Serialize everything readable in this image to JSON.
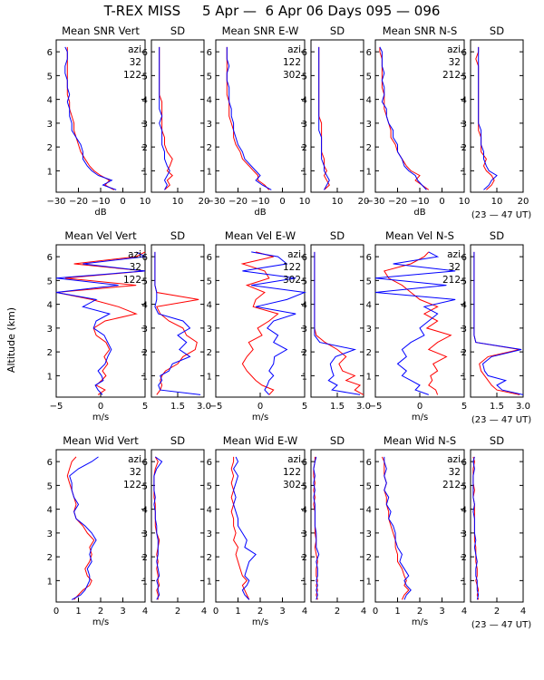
{
  "title": "T-REX MISS     5 Apr —  6 Apr 06 Days 095 — 096",
  "ylabel": "Altitude (km)",
  "ut_note": "(23 — 47 UT)",
  "colors": {
    "red": "#ff0000",
    "blue": "#0000ff",
    "black": "#000000"
  },
  "chart_data": {
    "type": "line",
    "y_axis": {
      "label": "Altitude (km)",
      "range": [
        0.1,
        6.5
      ],
      "ticks": [
        1,
        2,
        3,
        4,
        5,
        6
      ]
    },
    "rows": [
      {
        "name": "snr",
        "mean_xlabel": "dB",
        "mean_range": [
          -30,
          10
        ],
        "mean_ticks": [
          -30,
          -20,
          -10,
          0,
          10
        ],
        "mean_ticklabels": [
          "−30",
          "−20",
          "−10",
          "0",
          "10"
        ],
        "sd_range": [
          0,
          20
        ],
        "sd_ticks": [
          10,
          20
        ],
        "sd_ticklabels": [
          "10",
          "20"
        ],
        "show_ut": true,
        "panels": [
          {
            "title": "Mean SNR Vert",
            "legend": [
              "azi",
              "32",
              "122"
            ],
            "red_key": "snr_v",
            "blue_key": "snr_v_b"
          },
          {
            "title": "Mean SNR E-W",
            "legend": [
              "azi",
              "122",
              "302"
            ],
            "red_key": "snr_ew",
            "blue_key": "snr_ew_b"
          },
          {
            "title": "Mean SNR N-S",
            "legend": [
              "azi",
              "32",
              "212"
            ],
            "red_key": "snr_ns",
            "blue_key": "snr_ns_b"
          }
        ],
        "sd_title": "SD"
      },
      {
        "name": "vel",
        "mean_xlabel": "m/s",
        "mean_range": [
          -5,
          5
        ],
        "mean_ticks": [
          -5,
          0,
          5
        ],
        "mean_ticklabels": [
          "−5",
          "0",
          "5"
        ],
        "sd_range": [
          0,
          3.0
        ],
        "sd_ticks": [
          1.5,
          3.0
        ],
        "sd_ticklabels": [
          "1.5",
          "3.0"
        ],
        "show_ut": true,
        "panels": [
          {
            "title": "Mean Vel Vert",
            "legend": [
              "azi",
              "32",
              "122"
            ]
          },
          {
            "title": "Mean Vel E-W",
            "legend": [
              "azi",
              "122",
              "302"
            ]
          },
          {
            "title": "Mean Vel N-S",
            "legend": [
              "azi",
              "32",
              "212"
            ]
          }
        ],
        "sd_title": "SD"
      },
      {
        "name": "wid",
        "mean_xlabel": "m/s",
        "mean_range": [
          0,
          4
        ],
        "mean_ticks": [
          0,
          1,
          2,
          3,
          4
        ],
        "mean_ticklabels": [
          "0",
          "1",
          "2",
          "3",
          "4"
        ],
        "sd_range": [
          0,
          4
        ],
        "sd_ticks": [
          2,
          4
        ],
        "sd_ticklabels": [
          "2",
          "4"
        ],
        "show_ut": true,
        "panels": [
          {
            "title": "Mean Wid Vert",
            "legend": [
              "azi",
              "32",
              "122"
            ]
          },
          {
            "title": "Mean Wid E-W",
            "legend": [
              "azi",
              "122",
              "302"
            ]
          },
          {
            "title": "Mean Wid N-S",
            "legend": [
              "azi",
              "32",
              "212"
            ]
          }
        ],
        "sd_title": "SD"
      }
    ],
    "profiles": {
      "alt": [
        0.2,
        0.4,
        0.6,
        0.8,
        1.0,
        1.2,
        1.5,
        1.8,
        2.1,
        2.4,
        2.7,
        3.0,
        3.3,
        3.6,
        3.9,
        4.2,
        4.5,
        4.8,
        5.1,
        5.4,
        5.7,
        6.0,
        6.2
      ],
      "snr_mean": [
        {
          "red": [
            -4,
            -8,
            -6,
            -10,
            -13,
            -15,
            -17,
            -19,
            -20,
            -21,
            -22,
            -22,
            -23,
            -24,
            -24,
            -25,
            -25,
            -25,
            -25,
            -25,
            -25,
            -25,
            -25
          ],
          "blue": [
            -3,
            -9,
            -5,
            -11,
            -14,
            -16,
            -18,
            -18,
            -19,
            -21,
            -23,
            -23,
            -24,
            -24,
            -25,
            -24,
            -25,
            -25,
            -26,
            -26,
            -25,
            -25,
            -26
          ]
        },
        {
          "red": [
            -6,
            -8,
            -11,
            -11,
            -13,
            -15,
            -18,
            -19,
            -21,
            -22,
            -22,
            -23,
            -24,
            -24,
            -24,
            -25,
            -25,
            -25,
            -25,
            -25,
            -25,
            -25,
            -25
          ],
          "blue": [
            -5,
            -9,
            -12,
            -10,
            -12,
            -14,
            -17,
            -18,
            -20,
            -21,
            -22,
            -22,
            -23,
            -23,
            -24,
            -24,
            -24,
            -25,
            -25,
            -24,
            -25,
            -25,
            -25
          ]
        },
        {
          "red": [
            -6,
            -9,
            -12,
            -10,
            -14,
            -16,
            -18,
            -20,
            -21,
            -23,
            -23,
            -24,
            -25,
            -26,
            -26,
            -26,
            -27,
            -27,
            -27,
            -27,
            -27,
            -28,
            -28
          ],
          "blue": [
            -7,
            -9,
            -11,
            -12,
            -15,
            -17,
            -18,
            -20,
            -20,
            -22,
            -22,
            -24,
            -25,
            -25,
            -27,
            -26,
            -26,
            -27,
            -26,
            -27,
            -27,
            -27,
            -28
          ]
        }
      ],
      "snr_sd": [
        {
          "red": [
            5,
            7,
            6,
            8,
            6,
            7,
            8,
            6,
            5,
            5,
            4,
            4,
            4,
            4,
            4,
            3,
            3,
            3,
            3,
            3,
            3,
            3,
            3
          ],
          "blue": [
            5,
            6,
            5,
            6,
            7,
            6,
            5,
            5,
            4,
            4,
            4,
            3,
            4,
            3,
            3,
            3,
            3,
            3,
            3,
            3,
            3,
            3,
            3
          ]
        },
        {
          "red": [
            5,
            7,
            6,
            5,
            6,
            5,
            5,
            4,
            4,
            4,
            4,
            4,
            3,
            3,
            3,
            3,
            3,
            3,
            3,
            3,
            3,
            3,
            3
          ],
          "blue": [
            5,
            6,
            7,
            6,
            5,
            5,
            4,
            4,
            4,
            4,
            3,
            3,
            3,
            3,
            3,
            3,
            3,
            3,
            3,
            3,
            3,
            3,
            3
          ]
        },
        {
          "red": [
            6,
            8,
            9,
            8,
            6,
            5,
            6,
            4,
            4,
            4,
            3,
            3,
            3,
            3,
            3,
            3,
            3,
            3,
            3,
            3,
            2,
            3,
            3
          ],
          "blue": [
            5,
            7,
            8,
            10,
            7,
            6,
            5,
            5,
            4,
            4,
            4,
            3,
            3,
            3,
            3,
            3,
            3,
            3,
            3,
            3,
            3,
            3,
            3
          ]
        }
      ],
      "vel_mean": [
        {
          "red": [
            -0.3,
            0.5,
            -0.5,
            0.1,
            0.6,
            0.2,
            0.8,
            0.4,
            1.0,
            0.6,
            -0.5,
            -0.8,
            0.5,
            4.0,
            2.0,
            -1.0,
            -5.0,
            4.0,
            -4.0,
            5.0,
            -3.0,
            4.0,
            5.0
          ],
          "blue": [
            0.2,
            -0.3,
            -0.6,
            0.3,
            0.1,
            -0.3,
            0.5,
            0.8,
            1.2,
            0.8,
            0.4,
            -0.8,
            -0.5,
            1.0,
            -2.0,
            -0.5,
            -5.0,
            2.0,
            -5.0,
            5.0,
            -2.0,
            5.0,
            4.0
          ]
        },
        {
          "red": [
            1.0,
            1.5,
            0.2,
            -0.5,
            -1.0,
            -1.5,
            -2.0,
            -1.5,
            -0.8,
            -1.3,
            0.2,
            -0.3,
            1.0,
            2.0,
            -0.8,
            -0.5,
            0.5,
            -1.5,
            1.0,
            0.5,
            -2.0,
            1.5,
            -0.5
          ],
          "blue": [
            1.0,
            0.5,
            0.8,
            1.0,
            1.5,
            1.0,
            1.5,
            1.6,
            3.0,
            1.5,
            2.0,
            0.8,
            1.5,
            4.0,
            -0.5,
            3.0,
            5.0,
            -1.0,
            4.0,
            -2.0,
            3.0,
            2.0,
            -1.0
          ]
        },
        {
          "red": [
            2.0,
            1.8,
            1.0,
            1.4,
            1.2,
            2.0,
            1.5,
            3.0,
            1.0,
            2.0,
            3.5,
            0.8,
            2.0,
            0.5,
            2.0,
            0.0,
            -1.0,
            -2.0,
            -3.5,
            -4.0,
            -1.0,
            0.5,
            1.0
          ],
          "blue": [
            1.0,
            -0.5,
            0.0,
            -1.0,
            -2.0,
            -1.5,
            -2.5,
            -1.5,
            -2.0,
            -1.0,
            0.5,
            0.0,
            1.0,
            2.0,
            0.5,
            4.0,
            -5.0,
            3.0,
            -5.0,
            4.0,
            -3.0,
            2.0,
            1.0
          ]
        }
      ],
      "vel_sd": [
        {
          "red": [
            0.3,
            0.5,
            0.6,
            0.5,
            0.6,
            0.8,
            1.5,
            1.8,
            2.5,
            2.6,
            2.0,
            1.8,
            1.0,
            0.5,
            0.3,
            2.7,
            0.3,
            0.2,
            0.2,
            0.2,
            0.2,
            0.2,
            0.2
          ],
          "blue": [
            2.8,
            0.5,
            0.4,
            0.6,
            0.5,
            1.0,
            1.2,
            2.2,
            1.6,
            2.0,
            1.5,
            2.2,
            1.8,
            0.4,
            0.2,
            0.3,
            0.3,
            0.2,
            0.2,
            0.2,
            0.2,
            0.2,
            0.2
          ]
        },
        {
          "red": [
            3.0,
            2.5,
            2.8,
            2.0,
            2.5,
            1.8,
            1.6,
            2.0,
            1.5,
            0.8,
            0.3,
            0.2,
            0.2,
            0.2,
            0.2,
            0.2,
            0.2,
            0.2,
            0.2,
            0.2,
            0.2,
            0.2,
            0.2
          ],
          "blue": [
            2.8,
            1.2,
            1.5,
            1.0,
            1.3,
            1.2,
            1.1,
            1.4,
            2.5,
            0.5,
            0.2,
            0.2,
            0.2,
            0.2,
            0.2,
            0.2,
            0.2,
            0.2,
            0.2,
            0.2,
            0.2,
            0.2,
            0.2
          ]
        },
        {
          "red": [
            2.8,
            1.5,
            1.2,
            1.0,
            0.8,
            0.6,
            0.5,
            1.0,
            2.8,
            0.3,
            0.2,
            0.2,
            0.2,
            0.2,
            0.2,
            0.2,
            0.2,
            0.2,
            0.2,
            0.2,
            0.2,
            0.2,
            0.2
          ],
          "blue": [
            3.0,
            1.8,
            1.5,
            2.0,
            1.0,
            0.8,
            0.7,
            1.2,
            2.9,
            0.3,
            0.2,
            0.2,
            0.2,
            0.2,
            0.2,
            0.2,
            0.2,
            0.2,
            0.2,
            0.2,
            0.2,
            0.2,
            0.2
          ]
        }
      ],
      "wid_mean": [
        {
          "red": [
            0.8,
            1.0,
            1.2,
            1.5,
            1.6,
            1.4,
            1.3,
            1.5,
            1.6,
            1.5,
            1.7,
            1.4,
            1.2,
            0.9,
            0.8,
            0.9,
            0.8,
            0.7,
            0.6,
            0.5,
            0.6,
            0.7,
            0.9
          ],
          "blue": [
            0.7,
            1.1,
            1.3,
            1.4,
            1.5,
            1.5,
            1.4,
            1.6,
            1.5,
            1.6,
            1.8,
            1.6,
            1.3,
            0.9,
            0.8,
            1.0,
            0.8,
            0.7,
            0.7,
            0.6,
            1.0,
            1.6,
            1.9
          ]
        },
        {
          "red": [
            1.5,
            1.4,
            1.3,
            1.2,
            1.4,
            1.2,
            1.1,
            1.0,
            0.9,
            1.0,
            0.8,
            0.9,
            0.8,
            0.8,
            0.7,
            0.8,
            0.7,
            0.8,
            0.7,
            0.8,
            0.7,
            0.8,
            0.8
          ],
          "blue": [
            1.5,
            1.3,
            1.2,
            1.4,
            1.5,
            1.3,
            1.4,
            1.5,
            1.8,
            1.3,
            1.4,
            1.2,
            1.0,
            1.0,
            0.9,
            0.8,
            0.9,
            0.8,
            0.9,
            1.0,
            0.8,
            1.0,
            0.9
          ]
        },
        {
          "red": [
            1.2,
            1.3,
            1.5,
            1.3,
            1.4,
            1.3,
            1.2,
            1.0,
            1.0,
            0.9,
            0.9,
            0.8,
            0.7,
            0.6,
            0.6,
            0.5,
            0.5,
            0.4,
            0.5,
            0.4,
            0.4,
            0.4,
            0.3
          ],
          "blue": [
            1.3,
            1.4,
            1.6,
            1.4,
            1.3,
            1.5,
            1.3,
            1.1,
            1.2,
            1.0,
            0.9,
            0.9,
            0.8,
            0.6,
            0.7,
            0.5,
            0.6,
            0.4,
            0.5,
            0.4,
            0.5,
            0.4,
            0.4
          ]
        }
      ],
      "wid_sd": [
        {
          "red": [
            0.5,
            0.5,
            0.4,
            0.6,
            0.5,
            0.5,
            0.4,
            0.5,
            0.4,
            0.5,
            0.6,
            0.4,
            0.3,
            0.3,
            0.3,
            0.3,
            0.2,
            0.2,
            0.2,
            0.2,
            0.3,
            0.5,
            0.3
          ],
          "blue": [
            0.4,
            0.6,
            0.5,
            0.5,
            0.4,
            0.6,
            0.5,
            0.4,
            0.5,
            0.5,
            0.5,
            0.4,
            0.4,
            0.3,
            0.3,
            0.2,
            0.3,
            0.2,
            0.2,
            0.2,
            0.4,
            0.8,
            0.3
          ]
        },
        {
          "red": [
            0.5,
            0.4,
            0.5,
            0.4,
            0.5,
            0.4,
            0.4,
            0.5,
            0.4,
            0.3,
            0.4,
            0.3,
            0.3,
            0.3,
            0.3,
            0.2,
            0.3,
            0.2,
            0.3,
            0.2,
            0.2,
            0.3,
            0.3
          ],
          "blue": [
            0.4,
            0.5,
            0.4,
            0.5,
            0.4,
            0.5,
            0.5,
            0.4,
            0.6,
            0.4,
            0.4,
            0.4,
            0.3,
            0.3,
            0.3,
            0.3,
            0.2,
            0.3,
            0.2,
            0.3,
            0.2,
            0.3,
            0.4
          ]
        },
        {
          "red": [
            0.6,
            0.5,
            0.6,
            0.5,
            0.4,
            0.5,
            0.5,
            0.4,
            0.4,
            0.4,
            0.3,
            0.3,
            0.3,
            0.3,
            0.3,
            0.3,
            0.2,
            0.3,
            0.2,
            0.2,
            0.2,
            0.3,
            0.2
          ],
          "blue": [
            0.5,
            0.6,
            0.5,
            0.5,
            0.5,
            0.4,
            0.4,
            0.5,
            0.4,
            0.3,
            0.4,
            0.3,
            0.3,
            0.3,
            0.2,
            0.3,
            0.2,
            0.2,
            0.2,
            0.2,
            0.3,
            0.2,
            0.3
          ]
        }
      ]
    }
  }
}
